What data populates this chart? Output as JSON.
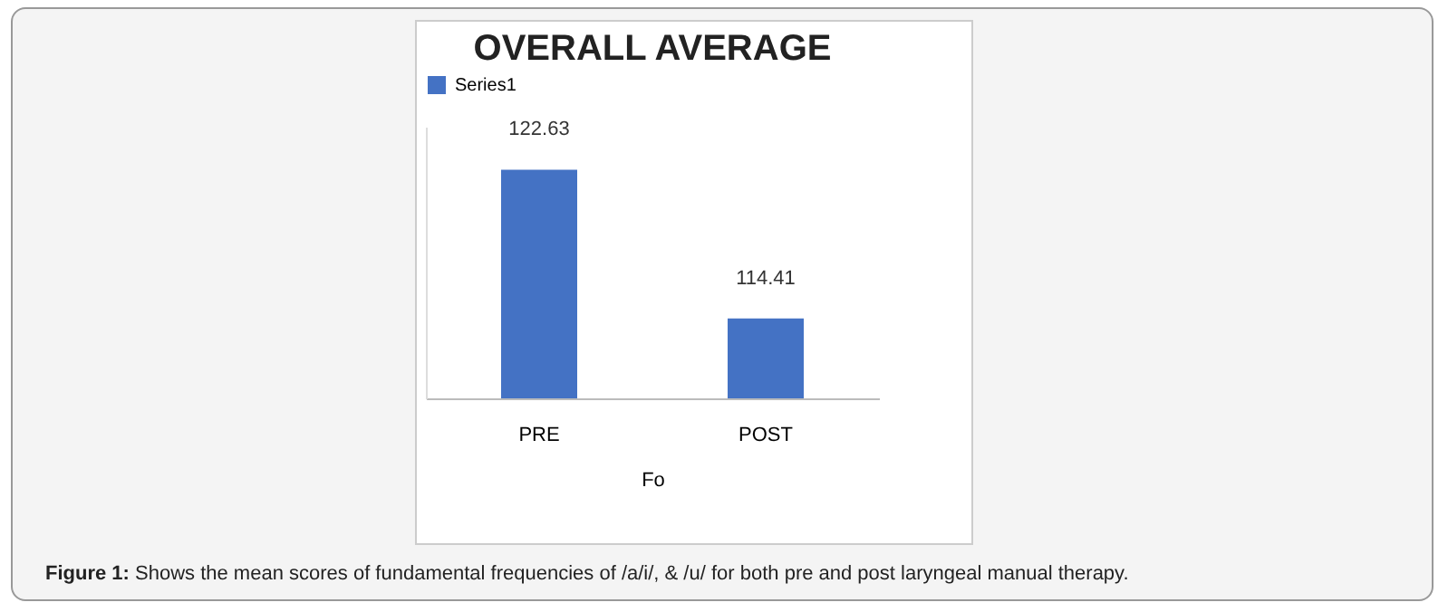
{
  "chart_data": {
    "type": "bar",
    "title": "OVERALL AVERAGE",
    "xlabel": "Fo",
    "categories": [
      "PRE",
      "POST"
    ],
    "series": [
      {
        "name": "Series1",
        "color": "#4472c4",
        "values": [
          122.63,
          114.41
        ]
      }
    ],
    "ylim": [
      110,
      125
    ],
    "tick_labels": "x",
    "data_labels": true,
    "grid": false,
    "legend": "top",
    "annotations": [
      "Figure 1: Shows the mean scores of fundamental frequencies of /a/i/, & /u/ for both pre and post laryngeal manual therapy."
    ]
  }
}
